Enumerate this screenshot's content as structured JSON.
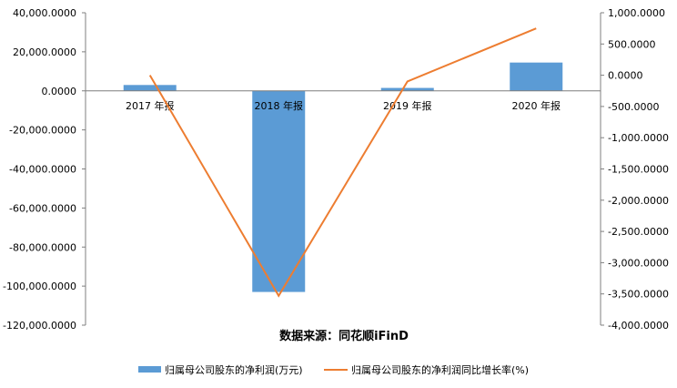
{
  "chart_data": {
    "type": "bar",
    "categories": [
      "2017 年报",
      "2018 年报",
      "2019 年报",
      "2020 年报"
    ],
    "series": [
      {
        "name": "归属母公司股东的净利润(万元)",
        "type": "bar",
        "axis": "left",
        "values": [
          3000,
          -103000,
          1500,
          14500
        ],
        "color": "#5B9BD5"
      },
      {
        "name": "归属母公司股东的净利润同比增长率(%)",
        "type": "line",
        "axis": "right",
        "values": [
          0,
          -3530,
          -100,
          750
        ],
        "color": "#ED7D31"
      }
    ],
    "y_left": {
      "min": -120000,
      "max": 40000,
      "ticks": [
        "40,000.0000",
        "20,000.0000",
        "0.0000",
        "-20,000.0000",
        "-40,000.0000",
        "-60,000.0000",
        "-80,000.0000",
        "-100,000.0000",
        "-120,000.0000"
      ]
    },
    "y_right": {
      "min": -4000,
      "max": 1000,
      "ticks": [
        "1,000.0000",
        "500.0000",
        "0.0000",
        "-500.0000",
        "-1,000.0000",
        "-1,500.0000",
        "-2,000.0000",
        "-2,500.0000",
        "-3,000.0000",
        "-3,500.0000",
        "-4,000.0000"
      ]
    },
    "source": "数据来源：同花顺iFinD",
    "grid": false,
    "legend": "bottom"
  }
}
